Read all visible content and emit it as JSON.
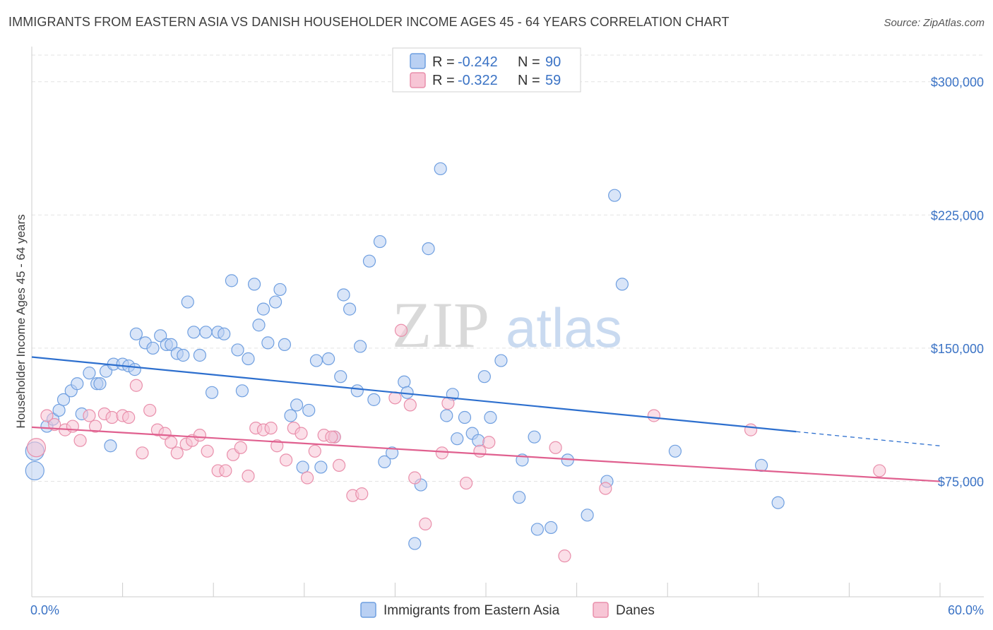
{
  "header": {
    "title": "IMMIGRANTS FROM EASTERN ASIA VS DANISH HOUSEHOLDER INCOME AGES 45 - 64 YEARS CORRELATION CHART",
    "source": "Source: ZipAtlas.com"
  },
  "watermark": {
    "zip": "ZIP",
    "atlas": "atlas"
  },
  "chart_data": {
    "type": "scatter",
    "ylabel": "Householder Income Ages 45 - 64 years",
    "xlim": [
      0,
      60
    ],
    "ylim": [
      10000,
      315000
    ],
    "x_tick_labels": [
      "0.0%",
      "60.0%"
    ],
    "y_ticks": [
      75000,
      150000,
      225000,
      300000
    ],
    "y_tick_labels": [
      "$75,000",
      "$150,000",
      "$225,000",
      "$300,000"
    ],
    "grid": true,
    "legend": {
      "placement": "top-center",
      "entries": [
        {
          "r_label": "R =",
          "r_value": "-0.242",
          "n_label": "N =",
          "n_value": "90"
        },
        {
          "r_label": "R =",
          "r_value": "-0.322",
          "n_label": "N =",
          "n_value": "59"
        }
      ]
    },
    "series": [
      {
        "name": "Immigrants from Eastern Asia",
        "color": "#6f9fe0",
        "fill": "#b9d0f3",
        "line_color": "#2d6fce",
        "trend": {
          "x1": 0,
          "y1": 145000,
          "x2": 50.5,
          "y2": 103000,
          "dash_x2": 60,
          "dash_y2": 95000
        },
        "points": [
          [
            0.2,
            81000
          ],
          [
            0.2,
            92000
          ],
          [
            1.0,
            106000
          ],
          [
            1.4,
            110000
          ],
          [
            1.8,
            115000
          ],
          [
            2.1,
            121000
          ],
          [
            2.6,
            126000
          ],
          [
            3.0,
            130000
          ],
          [
            3.3,
            113000
          ],
          [
            3.8,
            136000
          ],
          [
            4.3,
            130000
          ],
          [
            4.5,
            130000
          ],
          [
            4.9,
            137000
          ],
          [
            5.2,
            95000
          ],
          [
            5.4,
            141000
          ],
          [
            6.0,
            141000
          ],
          [
            6.4,
            140000
          ],
          [
            6.8,
            138000
          ],
          [
            6.9,
            158000
          ],
          [
            7.5,
            153000
          ],
          [
            8.0,
            150000
          ],
          [
            8.5,
            157000
          ],
          [
            8.9,
            152000
          ],
          [
            9.2,
            152000
          ],
          [
            9.6,
            147000
          ],
          [
            10.0,
            146000
          ],
          [
            10.3,
            176000
          ],
          [
            10.7,
            159000
          ],
          [
            11.1,
            146000
          ],
          [
            11.5,
            159000
          ],
          [
            11.9,
            125000
          ],
          [
            12.3,
            159000
          ],
          [
            12.7,
            158000
          ],
          [
            13.2,
            188000
          ],
          [
            13.6,
            149000
          ],
          [
            13.9,
            126000
          ],
          [
            14.3,
            144000
          ],
          [
            14.7,
            186000
          ],
          [
            15.0,
            163000
          ],
          [
            15.3,
            172000
          ],
          [
            15.6,
            153000
          ],
          [
            16.1,
            176000
          ],
          [
            16.4,
            183000
          ],
          [
            16.7,
            152000
          ],
          [
            17.1,
            112000
          ],
          [
            17.5,
            118000
          ],
          [
            17.9,
            83000
          ],
          [
            18.3,
            115000
          ],
          [
            18.8,
            143000
          ],
          [
            19.1,
            83000
          ],
          [
            19.6,
            144000
          ],
          [
            20.0,
            100000
          ],
          [
            20.4,
            134000
          ],
          [
            20.6,
            180000
          ],
          [
            21.0,
            172000
          ],
          [
            21.5,
            126000
          ],
          [
            21.7,
            151000
          ],
          [
            22.3,
            199000
          ],
          [
            22.6,
            121000
          ],
          [
            23.0,
            210000
          ],
          [
            23.3,
            86000
          ],
          [
            23.8,
            91000
          ],
          [
            24.6,
            131000
          ],
          [
            24.8,
            125000
          ],
          [
            25.3,
            40000
          ],
          [
            25.7,
            73000
          ],
          [
            26.2,
            206000
          ],
          [
            27.0,
            251000
          ],
          [
            27.4,
            112000
          ],
          [
            27.8,
            124000
          ],
          [
            28.1,
            99000
          ],
          [
            28.6,
            111000
          ],
          [
            29.1,
            102000
          ],
          [
            29.5,
            98000
          ],
          [
            29.9,
            134000
          ],
          [
            30.3,
            111000
          ],
          [
            31.0,
            143000
          ],
          [
            32.2,
            66000
          ],
          [
            32.4,
            87000
          ],
          [
            33.2,
            100000
          ],
          [
            33.4,
            48000
          ],
          [
            34.3,
            49000
          ],
          [
            35.4,
            87000
          ],
          [
            36.7,
            56000
          ],
          [
            38.0,
            75000
          ],
          [
            38.5,
            236000
          ],
          [
            39.0,
            186000
          ],
          [
            42.5,
            92000
          ],
          [
            48.2,
            84000
          ],
          [
            49.3,
            63000
          ]
        ]
      },
      {
        "name": "Danes",
        "color": "#e98fab",
        "fill": "#f7c5d5",
        "line_color": "#e0608f",
        "trend": {
          "x1": 0,
          "y1": 105500,
          "x2": 60,
          "y2": 75000
        },
        "points": [
          [
            0.3,
            94000
          ],
          [
            1.0,
            112000
          ],
          [
            1.5,
            107000
          ],
          [
            2.2,
            104000
          ],
          [
            2.7,
            106000
          ],
          [
            3.2,
            98000
          ],
          [
            3.8,
            112000
          ],
          [
            4.2,
            106000
          ],
          [
            4.8,
            113000
          ],
          [
            5.3,
            111000
          ],
          [
            6.0,
            112000
          ],
          [
            6.4,
            111000
          ],
          [
            6.9,
            129000
          ],
          [
            7.3,
            91000
          ],
          [
            7.8,
            115000
          ],
          [
            8.3,
            104000
          ],
          [
            8.8,
            102000
          ],
          [
            9.2,
            97000
          ],
          [
            9.6,
            91000
          ],
          [
            10.2,
            96000
          ],
          [
            10.6,
            98000
          ],
          [
            11.1,
            101000
          ],
          [
            11.6,
            92000
          ],
          [
            12.3,
            81000
          ],
          [
            12.8,
            81000
          ],
          [
            13.3,
            90000
          ],
          [
            13.8,
            94000
          ],
          [
            14.3,
            78000
          ],
          [
            14.8,
            105000
          ],
          [
            15.3,
            104000
          ],
          [
            15.8,
            105000
          ],
          [
            16.2,
            95000
          ],
          [
            16.8,
            87000
          ],
          [
            17.3,
            105000
          ],
          [
            17.8,
            102000
          ],
          [
            18.2,
            77000
          ],
          [
            18.7,
            92000
          ],
          [
            19.3,
            101000
          ],
          [
            20.0,
            100000
          ],
          [
            20.3,
            84000
          ],
          [
            21.2,
            67000
          ],
          [
            21.8,
            68000
          ],
          [
            24.0,
            122000
          ],
          [
            24.4,
            160000
          ],
          [
            25.0,
            118000
          ],
          [
            25.3,
            77000
          ],
          [
            26.0,
            51000
          ],
          [
            27.1,
            91000
          ],
          [
            27.5,
            119000
          ],
          [
            28.7,
            74000
          ],
          [
            29.6,
            92000
          ],
          [
            30.2,
            97000
          ],
          [
            34.6,
            94000
          ],
          [
            35.2,
            33000
          ],
          [
            37.9,
            71000
          ],
          [
            41.1,
            112000
          ],
          [
            47.5,
            104000
          ],
          [
            56.0,
            81000
          ],
          [
            19.8,
            100000
          ]
        ]
      }
    ]
  }
}
